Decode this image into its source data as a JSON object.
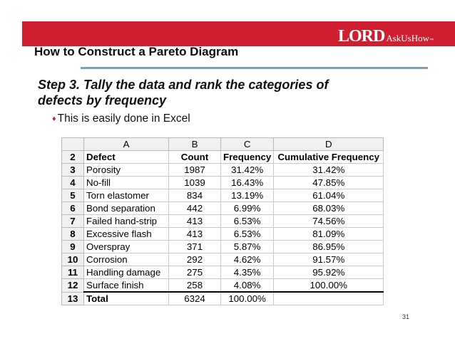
{
  "header": {
    "logo_brand": "LORD",
    "logo_tagline": "AskUsHow",
    "logo_tm": "™",
    "title": "How to Construct a Pareto Diagram"
  },
  "content": {
    "step_text": "Step 3.  Tally the data and rank the categories of defects by frequency",
    "bullet_text": "This is easily done in Excel"
  },
  "sheet": {
    "col_headers": [
      "A",
      "B",
      "C",
      "D"
    ],
    "header_row": {
      "row_num": "2",
      "cells": [
        "Defect",
        "Count",
        "Frequency",
        "Cumulative Frequency"
      ]
    },
    "rows": [
      {
        "row_num": "3",
        "cells": [
          "Porosity",
          "1987",
          "31.42%",
          "31.42%"
        ]
      },
      {
        "row_num": "4",
        "cells": [
          "No-fill",
          "1039",
          "16.43%",
          "47.85%"
        ]
      },
      {
        "row_num": "5",
        "cells": [
          "Torn elastomer",
          "834",
          "13.19%",
          "61.04%"
        ]
      },
      {
        "row_num": "6",
        "cells": [
          "Bond separation",
          "442",
          "6.99%",
          "68.03%"
        ]
      },
      {
        "row_num": "7",
        "cells": [
          "Failed hand-strip",
          "413",
          "6.53%",
          "74.56%"
        ]
      },
      {
        "row_num": "8",
        "cells": [
          "Excessive flash",
          "413",
          "6.53%",
          "81.09%"
        ]
      },
      {
        "row_num": "9",
        "cells": [
          "Overspray",
          "371",
          "5.87%",
          "86.95%"
        ]
      },
      {
        "row_num": "10",
        "cells": [
          "Corrosion",
          "292",
          "4.62%",
          "91.57%"
        ]
      },
      {
        "row_num": "11",
        "cells": [
          "Handling damage",
          "275",
          "4.35%",
          "95.92%"
        ]
      },
      {
        "row_num": "12",
        "cells": [
          "Surface finish",
          "258",
          "4.08%",
          "100.00%"
        ]
      }
    ],
    "total_row": {
      "row_num": "13",
      "cells": [
        "Total",
        "6324",
        "100.00%",
        ""
      ]
    }
  },
  "footer": {
    "page_number": "31"
  },
  "colors": {
    "brand_red": "#cf1f2e",
    "rule_blue_gray": "#7f9fb1"
  }
}
